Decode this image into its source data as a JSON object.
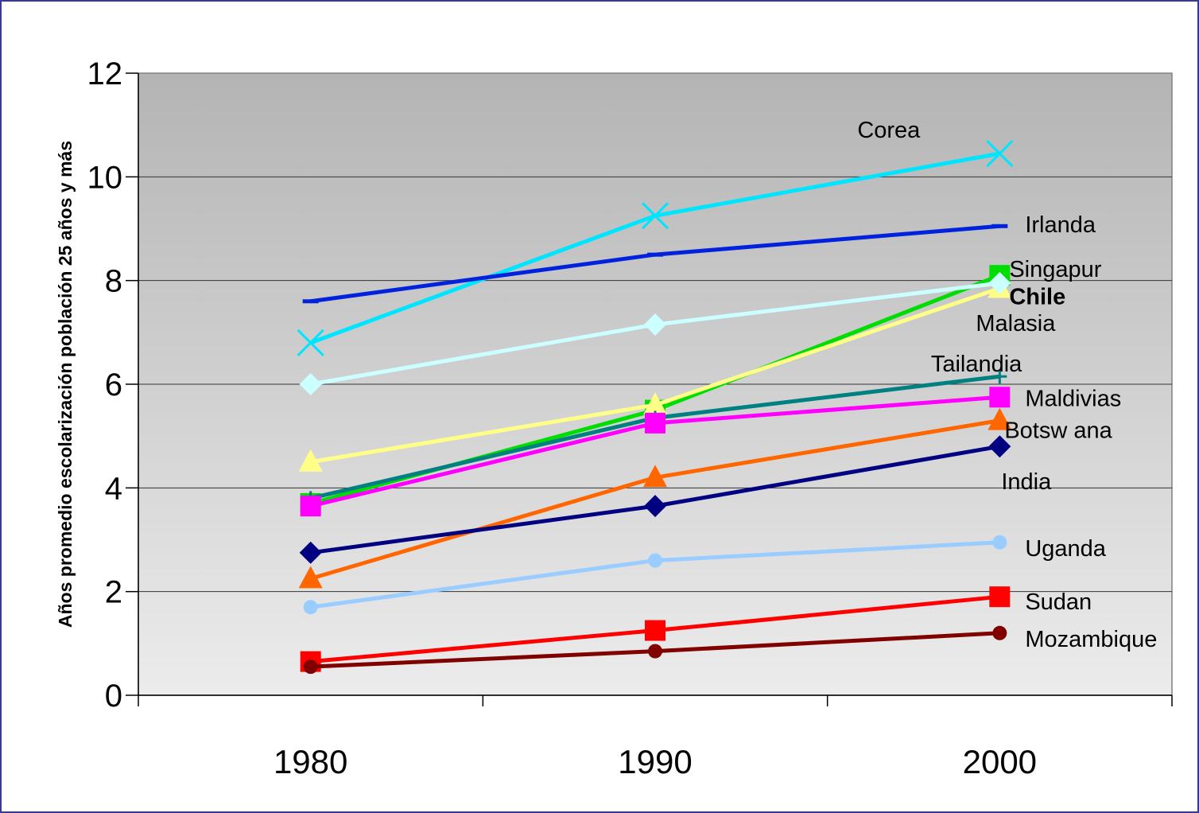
{
  "chart_data": {
    "type": "line",
    "title": "",
    "xlabel": "",
    "ylabel": "Años promedio escolarización población 25 años y más",
    "categories": [
      "1980",
      "1990",
      "2000"
    ],
    "ylim": [
      0,
      12
    ],
    "yticks": [
      "0",
      "2",
      "4",
      "6",
      "8",
      "10",
      "12"
    ],
    "grid": true,
    "legend": "none",
    "series": [
      {
        "name": "Corea",
        "values": [
          6.8,
          9.25,
          10.45
        ],
        "color": "#00e5ff",
        "marker": "x",
        "bold": false
      },
      {
        "name": "Irlanda",
        "values": [
          7.6,
          8.5,
          9.05
        ],
        "color": "#0022dd",
        "marker": "dash",
        "bold": false
      },
      {
        "name": "Singapur",
        "values": [
          3.7,
          5.5,
          8.1
        ],
        "color": "#00dd00",
        "marker": "square",
        "bold": false
      },
      {
        "name": "Chile",
        "values": [
          4.5,
          5.6,
          7.85
        ],
        "color": "#ffff88",
        "marker": "triangle",
        "bold": true
      },
      {
        "name": "Malasia",
        "values": [
          6.0,
          7.15,
          7.95
        ],
        "color": "#ccffff",
        "marker": "diamond",
        "bold": false
      },
      {
        "name": "Tailandia",
        "values": [
          3.8,
          5.35,
          6.15
        ],
        "color": "#008080",
        "marker": "plus",
        "bold": false
      },
      {
        "name": "Maldivias",
        "values": [
          3.65,
          5.25,
          5.75
        ],
        "color": "#ff00ff",
        "marker": "square",
        "bold": false
      },
      {
        "name": "Botsw ana",
        "values": [
          2.25,
          4.2,
          5.3
        ],
        "color": "#ff6600",
        "marker": "triangle",
        "bold": false
      },
      {
        "name": "India",
        "values": [
          2.75,
          3.65,
          4.8
        ],
        "color": "#000080",
        "marker": "diamond",
        "bold": false
      },
      {
        "name": "Uganda",
        "values": [
          1.7,
          2.6,
          2.95
        ],
        "color": "#99ccff",
        "marker": "circle",
        "bold": false
      },
      {
        "name": "Sudan",
        "values": [
          0.65,
          1.25,
          1.9
        ],
        "color": "#ff0000",
        "marker": "square",
        "bold": false
      },
      {
        "name": "Mozambique",
        "values": [
          0.55,
          0.85,
          1.2
        ],
        "color": "#800000",
        "marker": "circle",
        "bold": false
      }
    ]
  }
}
